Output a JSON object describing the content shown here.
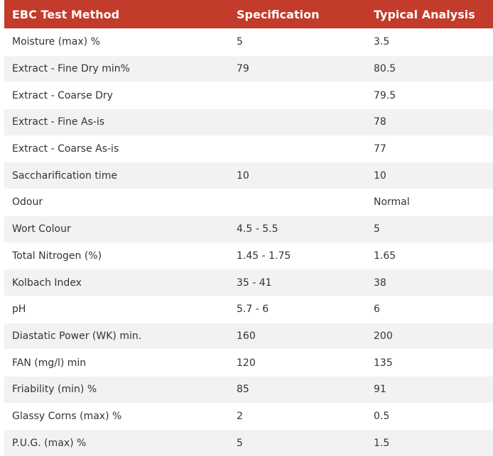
{
  "table": {
    "header": [
      "EBC Test Method",
      "Specification",
      "Typical Analysis"
    ],
    "rows": [
      [
        "Moisture (max) %",
        "5",
        "3.5"
      ],
      [
        "Extract - Fine Dry min%",
        "79",
        "80.5"
      ],
      [
        "Extract - Coarse Dry",
        null,
        "79.5"
      ],
      [
        "Extract - Fine As-is",
        null,
        "78"
      ],
      [
        "Extract - Coarse As-is",
        null,
        "77"
      ],
      [
        "Saccharification time",
        "10",
        "10"
      ],
      [
        "Odour",
        null,
        "Normal"
      ],
      [
        "Wort Colour",
        "4.5 - 5.5",
        "5"
      ],
      [
        "Total Nitrogen (%)",
        "1.45 - 1.75",
        "1.65"
      ],
      [
        "Kolbach Index",
        "35 - 41",
        "38"
      ],
      [
        "pH",
        "5.7 - 6",
        "6"
      ],
      [
        "Diastatic Power (WK) min.",
        "160",
        "200"
      ],
      [
        "FAN (mg/l) min",
        "120",
        "135"
      ],
      [
        "Friability (min) %",
        "85",
        "91"
      ],
      [
        "Glassy Corns (max) %",
        "2",
        "0.5"
      ],
      [
        "P.U.G. (max) %",
        "5",
        "1.5"
      ]
    ]
  }
}
